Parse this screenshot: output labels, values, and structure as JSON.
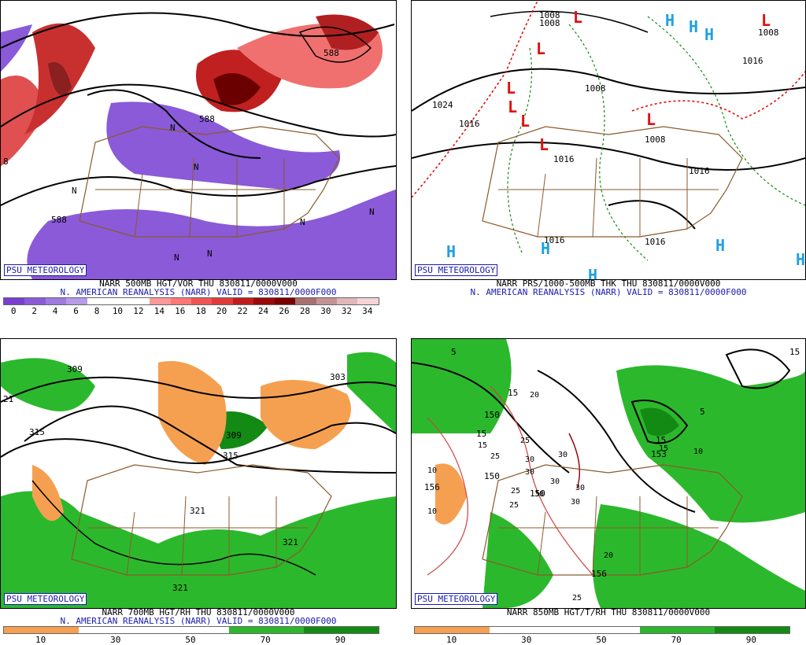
{
  "panels": [
    {
      "id": "p500",
      "badge": "PSU METEOROLOGY",
      "line1": "NARR 500MB HGT/VOR THU 830811/0000V000",
      "line2": "N. AMERICAN REANALYSIS (NARR) VALID = 830811/0000F000",
      "ticks": [
        "0",
        "2",
        "4",
        "6",
        "8",
        "10",
        "12",
        "14",
        "16",
        "18",
        "20",
        "22",
        "24",
        "26",
        "28",
        "30",
        "32",
        "34"
      ],
      "contour_labels": [
        "588",
        "588",
        "8",
        "588"
      ],
      "n_marks": [
        "N",
        "N",
        "N",
        "N",
        "N",
        "N",
        "N"
      ],
      "colors": [
        "#7a3fd0",
        "#8c5ad8",
        "#9f7ae0",
        "#b79ae8",
        "#ffffff",
        "#ffffff",
        "#ffffff",
        "#ff9999",
        "#ff7777",
        "#f05555",
        "#e03a3a",
        "#c01c1c",
        "#9a0a0a",
        "#7a0000",
        "#a87070",
        "#c49494",
        "#e0b8b8",
        "#f4d4d4"
      ]
    },
    {
      "id": "psfc",
      "badge": "PSU METEOROLOGY",
      "line1": "NARR PRS/1000-500MB THK THU 830811/0000V000",
      "line2": "N. AMERICAN REANALYSIS (NARR) VALID = 830811/0000F000",
      "labels": [
        "1008",
        "1008",
        "1024",
        "1016",
        "1016",
        "1016",
        "1016",
        "1008",
        "1008",
        "1016",
        "1016",
        "1008"
      ],
      "L_marks": [
        "L",
        "L",
        "L",
        "L",
        "L",
        "L",
        "L",
        "L"
      ],
      "H_marks": [
        "H",
        "H",
        "H",
        "H",
        "H",
        "H",
        "H",
        "H"
      ],
      "colors": {
        "low": "#e01010",
        "high": "#20a0e0",
        "thk_warm": "#e01010",
        "thk_cold": "#108a10"
      }
    },
    {
      "id": "p700",
      "badge": "PSU METEOROLOGY",
      "line1": "NARR 700MB HGT/RH THU 830811/0000V000",
      "line2": "N. AMERICAN REANALYSIS (NARR) VALID = 830811/0000F000",
      "ticks": [
        "10",
        "30",
        "50",
        "70",
        "90"
      ],
      "labels": [
        "309",
        "315",
        "21",
        "309",
        "303",
        "315",
        "321",
        "321",
        "321"
      ],
      "colors": {
        "dry": "#f5a050",
        "moist": "#2cb82c",
        "moist_dark": "#138a13"
      }
    },
    {
      "id": "p850",
      "badge": "PSU METEOROLOGY",
      "line1": "NARR 850MB HGT/T/RH THU 830811/0000V000",
      "line2": "",
      "ticks": [
        "10",
        "30",
        "50",
        "70",
        "90"
      ],
      "labels": [
        "5",
        "15",
        "5",
        "15",
        "150",
        "156",
        "150",
        "150",
        "156",
        "153",
        "15",
        "15"
      ],
      "boxlabels": [
        "20",
        "25",
        "25",
        "30",
        "30",
        "30",
        "30",
        "30",
        "25",
        "10",
        "10",
        "10",
        "15",
        "20",
        "25",
        "25",
        "15",
        "30",
        "30"
      ],
      "colors": {
        "dry": "#f5a050",
        "moist": "#2cb82c",
        "moist_dark": "#138a13",
        "temp": "#d04040"
      }
    }
  ]
}
